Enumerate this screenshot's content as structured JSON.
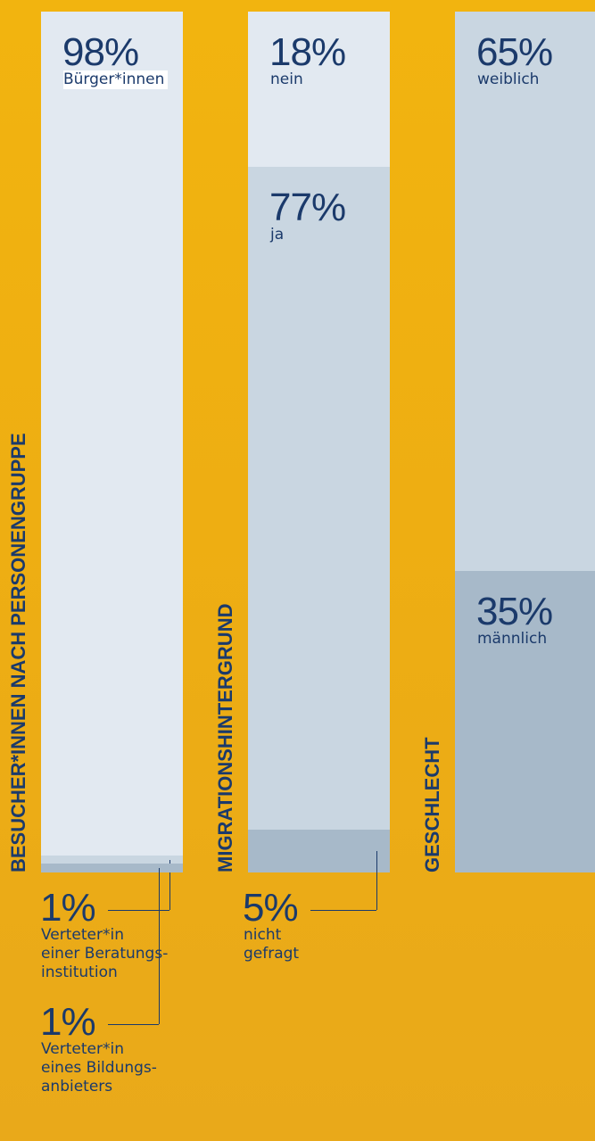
{
  "chart_data": [
    {
      "type": "stacked_bar",
      "title": "BESUCHER*INNEN NACH PERSONENGRUPPE",
      "categories": [
        "Bürger*innen",
        "Verteter*in\neiner Beratungs-\ninstitution",
        "Verteter*in\neines Bildungs-\nanbieters"
      ],
      "values": [
        98,
        1,
        1
      ],
      "value_labels": [
        "98%",
        "1%",
        "1%"
      ],
      "colors": [
        "#e2e9f1",
        "#c9d6e1",
        "#a7b9c9"
      ]
    },
    {
      "type": "stacked_bar",
      "title": "MIGRATIONSHINTERGRUND",
      "categories": [
        "nein",
        "ja",
        "nicht\ngefragt"
      ],
      "values": [
        18,
        77,
        5
      ],
      "value_labels": [
        "18%",
        "77%",
        "5%"
      ],
      "colors": [
        "#e2e9f1",
        "#c9d6e1",
        "#a7b9c9"
      ]
    },
    {
      "type": "stacked_bar",
      "title": "GESCHLECHT",
      "categories": [
        "weiblich",
        "männlich"
      ],
      "values": [
        65,
        35
      ],
      "value_labels": [
        "65%",
        "35%"
      ],
      "colors": [
        "#c9d6e1",
        "#a7b9c9"
      ]
    }
  ]
}
